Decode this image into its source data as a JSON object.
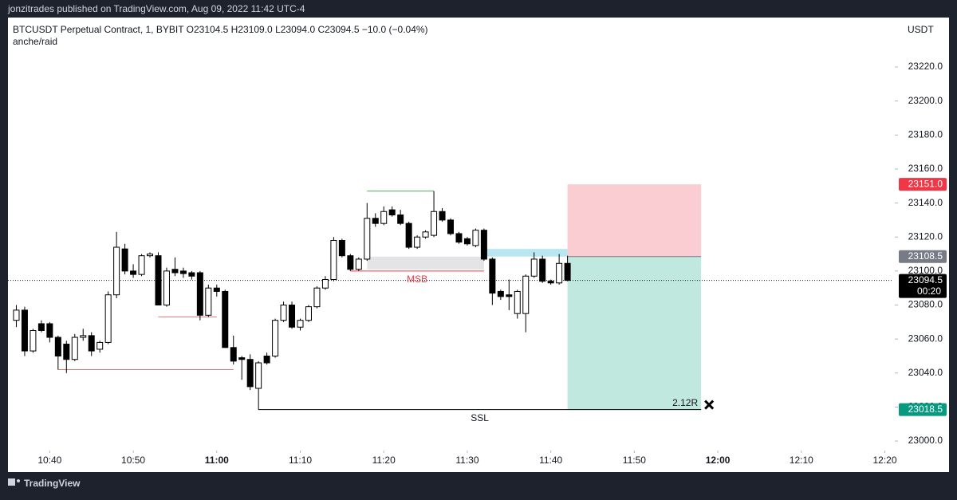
{
  "header": {
    "published": "jonzitrades published on TradingView.com, Aug 09, 2022 11:42 UTC-4",
    "brand": "TradingView"
  },
  "chart_data": {
    "type": "candlestick",
    "title": "BTCUSDT Perpetual Contract, 1, BYBIT  O23104.5  H23109.0  L23094.0  C23094.5  −10.0 (−0.04%)",
    "subtitle": "anche/raid",
    "y_label": "USDT",
    "x": [
      "10:36",
      "10:37",
      "10:38",
      "10:39",
      "10:40",
      "10:41",
      "10:42",
      "10:43",
      "10:44",
      "10:45",
      "10:46",
      "10:47",
      "10:48",
      "10:49",
      "10:50",
      "10:51",
      "10:52",
      "10:53",
      "10:54",
      "10:55",
      "10:56",
      "10:57",
      "10:58",
      "10:59",
      "11:00",
      "11:01",
      "11:02",
      "11:03",
      "11:04",
      "11:05",
      "11:06",
      "11:07",
      "11:08",
      "11:09",
      "11:10",
      "11:11",
      "11:12",
      "11:13",
      "11:14",
      "11:15",
      "11:16",
      "11:17",
      "11:18",
      "11:19",
      "11:20",
      "11:21",
      "11:22",
      "11:23",
      "11:24",
      "11:25",
      "11:26",
      "11:27",
      "11:28",
      "11:29",
      "11:30",
      "11:31",
      "11:32",
      "11:33",
      "11:34",
      "11:35",
      "11:36",
      "11:37",
      "11:38",
      "11:39",
      "11:40",
      "11:41",
      "11:42"
    ],
    "open": [
      23071,
      23077,
      23053,
      23069,
      23069,
      23061,
      23057,
      23048,
      23061,
      23062,
      23054,
      23058,
      23086,
      23113,
      23100,
      23098,
      23109,
      23109,
      23080,
      23101,
      23100,
      23099,
      23099,
      23074,
      23090,
      23088,
      23055,
      23049,
      23048,
      23031,
      23050,
      23050,
      23071,
      23080,
      23067,
      23071,
      23079,
      23090,
      23095,
      23118,
      23109,
      23101,
      23107,
      23131,
      23128,
      23136,
      23133,
      23128,
      23114,
      23120,
      23121,
      23135,
      23130,
      23122,
      23119,
      23115,
      23124,
      23107,
      23088,
      23086,
      23075,
      23075,
      23097,
      23107,
      23094,
      23093,
      23104.5
    ],
    "high": [
      23080,
      23079,
      23066,
      23071,
      23070,
      23062,
      23059,
      23063,
      23066,
      23064,
      23059,
      23088,
      23123,
      23116,
      23104,
      23110,
      23111,
      23111,
      23102,
      23108,
      23102,
      23100,
      23100,
      23092,
      23092,
      23089,
      23062,
      23050,
      23051,
      23047,
      23052,
      23072,
      23082,
      23082,
      23072,
      23080,
      23091,
      23097,
      23120,
      23119,
      23110,
      23108,
      23140,
      23134,
      23138,
      23138,
      23136,
      23129,
      23121,
      23124,
      23147,
      23137,
      23131,
      23123,
      23120,
      23125,
      23125,
      23108,
      23089,
      23095,
      23089,
      23098,
      23111,
      23109,
      23095,
      23110,
      23109
    ],
    "low": [
      23067,
      23050,
      23052,
      23064,
      23058,
      23042,
      23040,
      23047,
      23059,
      23050,
      23052,
      23057,
      23084,
      23098,
      23096,
      23097,
      23108,
      23080,
      23079,
      23097,
      23096,
      23095,
      23071,
      23073,
      23085,
      23055,
      23045,
      23036,
      23030,
      23018.5,
      23045,
      23049,
      23070,
      23066,
      23065,
      23070,
      23078,
      23089,
      23094,
      23108,
      23100,
      23100,
      23106,
      23126,
      23127,
      23132,
      23127,
      23113,
      23113,
      23119,
      23120,
      23129,
      23121,
      23116,
      23115,
      23114,
      23106,
      23080,
      23083,
      23077,
      23072,
      23064,
      23096,
      23093,
      23092,
      23092,
      23094
    ],
    "close": [
      23077,
      23053,
      23065,
      23065,
      23061,
      23050,
      23048,
      23061,
      23062,
      23053,
      23058,
      23086,
      23114,
      23100,
      23098,
      23109,
      23110,
      23080,
      23100,
      23099,
      23098.5,
      23097,
      23074,
      23090,
      23088,
      23055,
      23047,
      23048,
      23032,
      23046,
      23046,
      23071,
      23080,
      23067,
      23071,
      23079,
      23090,
      23095,
      23118,
      23109,
      23101,
      23107,
      23131,
      23128,
      23135,
      23133,
      23128,
      23114,
      23120,
      23123,
      23135,
      23130,
      23122,
      23117,
      23116,
      23124,
      23107,
      23087,
      23085,
      23085,
      23088,
      23097,
      23107,
      23094,
      23093,
      23104.5,
      23094.5
    ],
    "up_color": "#ffffff",
    "down_color": "#000000",
    "wick_color": "#000000",
    "xlim": [
      "10:35",
      "12:21"
    ],
    "xticks": [
      "10:40",
      "10:50",
      "11:00",
      "11:10",
      "11:20",
      "11:30",
      "11:40",
      "11:50",
      "12:00",
      "12:10",
      "12:20"
    ],
    "ylim": [
      22994.4,
      23249.1
    ],
    "yticks": [
      {
        "value": 23000,
        "label": "23000.0"
      },
      {
        "value": 23020,
        "label": "23020.0"
      },
      {
        "value": 23040,
        "label": "23040.0"
      },
      {
        "value": 23060,
        "label": "23060.0"
      },
      {
        "value": 23080,
        "label": "23080.0"
      },
      {
        "value": 23100,
        "label": "23100.0"
      },
      {
        "value": 23120,
        "label": "23120.0"
      },
      {
        "value": 23140,
        "label": "23140.0"
      },
      {
        "value": 23160,
        "label": "23160.0"
      },
      {
        "value": 23180,
        "label": "23180.0"
      },
      {
        "value": 23200,
        "label": "23200.0"
      },
      {
        "value": 23220,
        "label": "23220.0"
      }
    ],
    "price_tags": [
      {
        "value": 23151.0,
        "label": "23151.0",
        "color": "#f23645"
      },
      {
        "value": 23108.5,
        "label": "23108.5",
        "color": "#787b86"
      },
      {
        "value": 23094.5,
        "label": "23094.5",
        "color": "#000000",
        "countdown": "00:20"
      },
      {
        "value": 23018.5,
        "label": "23018.5",
        "color": "#089981"
      }
    ],
    "position": {
      "start": "11:42",
      "end": "11:58",
      "label": "2.12R",
      "stop_color": "#f9cdd1",
      "target_color": "#c1e8df"
    },
    "zones": [
      {
        "from": 23101,
        "to": 23108.5,
        "start": "11:18",
        "end": "11:32",
        "color": "#e4e4e6"
      },
      {
        "from": 23108.5,
        "to": 23113,
        "start": "11:32",
        "end": "11:42",
        "color": "#b9e6f0"
      }
    ],
    "levels": [
      {
        "value": 23147,
        "start": "11:18",
        "end": "11:26",
        "color": "#4caf50"
      },
      {
        "value": 23100,
        "start": "11:16",
        "end": "11:32",
        "color": "#f23645",
        "label": "MSB"
      },
      {
        "value": 23073,
        "start": "10:53",
        "end": "11:00",
        "color": "#e57373"
      },
      {
        "value": 23042,
        "start": "10:41",
        "end": "11:02",
        "color": "#e57373"
      },
      {
        "value": 23018.5,
        "start": "11:05",
        "end": "11:58",
        "color": "#000000",
        "label": "SSL"
      }
    ]
  }
}
